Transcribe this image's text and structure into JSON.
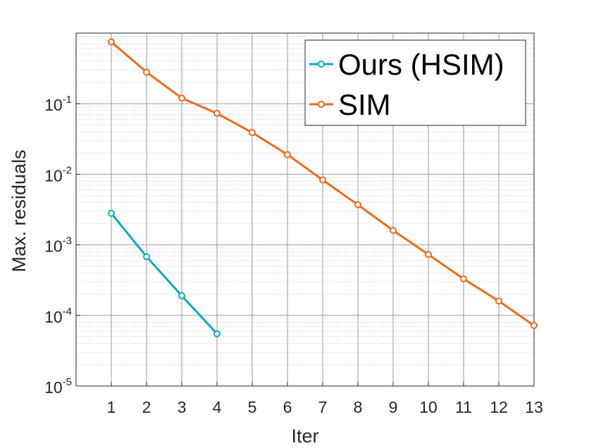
{
  "chart_data": {
    "type": "line",
    "title": "",
    "xlabel": "Iter",
    "ylabel": "Max. residuals",
    "x_ticks": [
      1,
      2,
      3,
      4,
      5,
      6,
      7,
      8,
      9,
      10,
      11,
      12,
      13
    ],
    "xlim": [
      0,
      13
    ],
    "ylim": [
      1e-05,
      1
    ],
    "y_scale": "log",
    "y_ticks": [
      {
        "value": 1e-05,
        "base": "10",
        "exp": "-5"
      },
      {
        "value": 0.0001,
        "base": "10",
        "exp": "-4"
      },
      {
        "value": 0.001,
        "base": "10",
        "exp": "-3"
      },
      {
        "value": 0.01,
        "base": "10",
        "exp": "-2"
      },
      {
        "value": 0.1,
        "base": "10",
        "exp": "-1"
      }
    ],
    "grid": true,
    "minor_grid": true,
    "legend_position": "top-right",
    "series": [
      {
        "name": "Ours (HSIM)",
        "color": "#0FA8C4",
        "x": [
          1,
          2,
          3,
          4
        ],
        "y": [
          0.0028,
          0.00068,
          0.00019,
          5.5e-05
        ]
      },
      {
        "name": "SIM",
        "color": "#EE6A1B",
        "x": [
          1,
          2,
          3,
          4,
          5,
          6,
          7,
          8,
          9,
          10,
          11,
          12,
          13
        ],
        "y": [
          0.75,
          0.28,
          0.12,
          0.073,
          0.039,
          0.019,
          0.0083,
          0.0037,
          0.0016,
          0.00073,
          0.00033,
          0.00016,
          7.2e-05
        ]
      }
    ]
  }
}
